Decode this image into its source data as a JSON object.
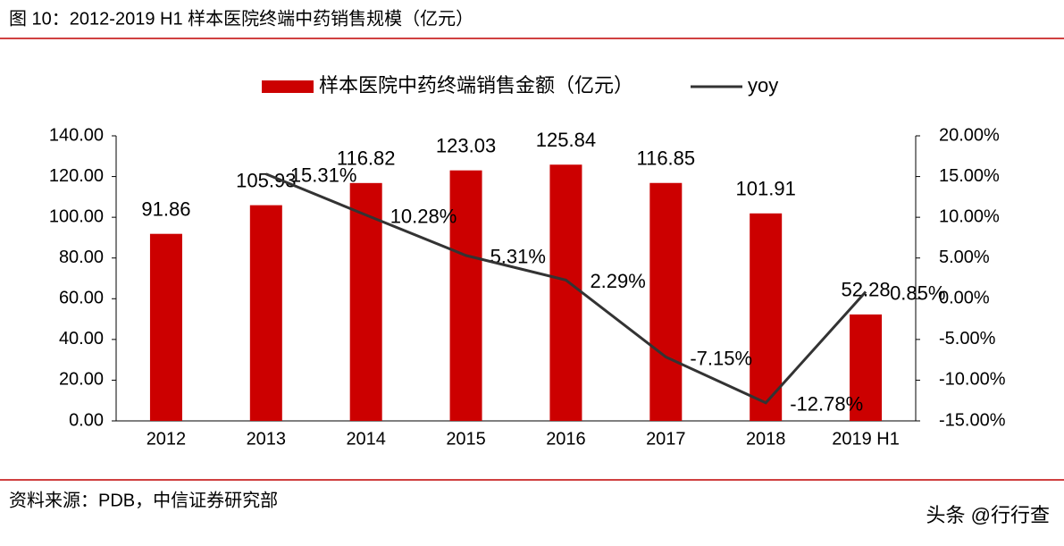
{
  "chart_data": {
    "type": "bar",
    "title": "图 10：2012-2019 H1 样本医院终端中药销售规模（亿元）",
    "source": "资料来源：PDB，中信证券研究部",
    "watermark": "头条 @行行查",
    "categories": [
      "2012",
      "2013",
      "2014",
      "2015",
      "2016",
      "2017",
      "2018",
      "2019 H1"
    ],
    "series": [
      {
        "name": "样本医院中药终端销售金额（亿元）",
        "type": "bar",
        "color": "#cc0000",
        "values": [
          91.86,
          105.93,
          116.82,
          123.03,
          125.84,
          116.85,
          101.91,
          52.28
        ]
      },
      {
        "name": "yoy",
        "type": "line",
        "color": "#333333",
        "axis": "y2",
        "values": [
          null,
          15.31,
          10.28,
          5.31,
          2.29,
          -7.15,
          -12.78,
          0.85
        ],
        "value_labels": [
          null,
          "15.31%",
          "10.28%",
          "5.31%",
          "2.29%",
          "-7.15%",
          "-12.78%",
          "0.85%"
        ]
      }
    ],
    "ylim": [
      0,
      140
    ],
    "yticks": [
      {
        "value": 0,
        "label": "0.00"
      },
      {
        "value": 20,
        "label": "20.00"
      },
      {
        "value": 40,
        "label": "40.00"
      },
      {
        "value": 60,
        "label": "60.00"
      },
      {
        "value": 80,
        "label": "80.00"
      },
      {
        "value": 100,
        "label": "100.00"
      },
      {
        "value": 120,
        "label": "120.00"
      },
      {
        "value": 140,
        "label": "140.00"
      }
    ],
    "y2lim": [
      -15,
      20
    ],
    "y2ticks": [
      {
        "value": -15,
        "label": "-15.00%"
      },
      {
        "value": -10,
        "label": "-10.00%"
      },
      {
        "value": -5,
        "label": "-5.00%"
      },
      {
        "value": 0,
        "label": "0.00%"
      },
      {
        "value": 5,
        "label": "5.00%"
      },
      {
        "value": 10,
        "label": "10.00%"
      },
      {
        "value": 15,
        "label": "15.00%"
      },
      {
        "value": 20,
        "label": "20.00%"
      }
    ],
    "legend": "top"
  }
}
